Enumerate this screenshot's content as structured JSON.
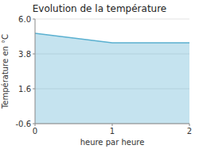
{
  "chart_data": {
    "type": "area",
    "title": "Evolution de la température",
    "x_label": "heure par heure",
    "y_label": "Température en °C",
    "x": [
      0.0,
      0.083,
      0.167,
      0.25,
      0.333,
      0.417,
      0.5,
      0.583,
      0.667,
      0.75,
      0.833,
      0.917,
      1.0,
      1.083,
      1.167,
      1.25,
      1.333,
      1.417,
      1.5,
      1.583,
      1.667,
      1.75,
      1.833,
      1.917,
      2.0
    ],
    "values": [
      5.1,
      5.05,
      5.0,
      4.95,
      4.9,
      4.85,
      4.8,
      4.75,
      4.7,
      4.65,
      4.6,
      4.55,
      4.5,
      4.5,
      4.5,
      4.5,
      4.5,
      4.5,
      4.5,
      4.5,
      4.5,
      4.5,
      4.5,
      4.5,
      4.5
    ],
    "color": "#5ab0d0",
    "xlim": [
      0,
      2
    ],
    "ylim": [
      -0.6,
      6.0
    ],
    "xticks": [
      0,
      1,
      2
    ],
    "yticks": [
      -0.6,
      1.6,
      3.8,
      {
        "value": 6.0,
        "label": "6.0"
      }
    ],
    "grid": true
  }
}
